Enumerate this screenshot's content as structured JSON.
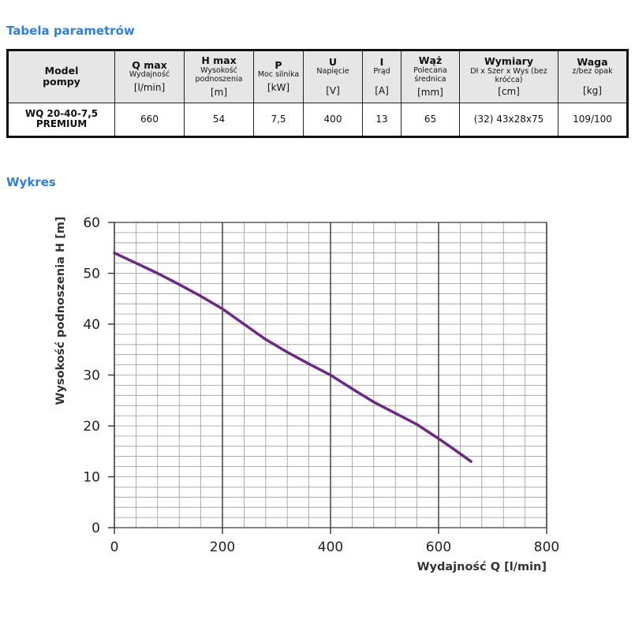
{
  "section_table_title": "Tabela parametrów",
  "section_chart_title": "Wykres",
  "table": {
    "headers": [
      {
        "main": "Model\npompy",
        "sub": "",
        "unit": ""
      },
      {
        "main": "Q max",
        "sub": "Wydajność",
        "unit": "[l/min]"
      },
      {
        "main": "H max",
        "sub": "Wysokość podnoszenia",
        "unit": "[m]"
      },
      {
        "main": "P",
        "sub": "Moc silnika",
        "unit": "[kW]"
      },
      {
        "main": "U",
        "sub": "Napięcie",
        "unit": "[V]"
      },
      {
        "main": "I",
        "sub": "Prąd",
        "unit": "[A]"
      },
      {
        "main": "Wąż",
        "sub": "Polecana średnica",
        "unit": "[mm]"
      },
      {
        "main": "Wymiary",
        "sub": "Dł x Szer x Wys (bez króćca)",
        "unit": "[cm]"
      },
      {
        "main": "Waga",
        "sub": "z/bez opak",
        "unit": "[kg]"
      }
    ],
    "row": [
      "WQ 20-40-7,5 PREMIUM",
      "660",
      "54",
      "7,5",
      "400",
      "13",
      "65",
      "(32) 43x28x75",
      "109/100"
    ]
  },
  "chart_data": {
    "type": "line",
    "xlabel": "Wydajność Q [l/min]",
    "ylabel": "Wysokość podnoszenia H [m]",
    "xlim": [
      0,
      800
    ],
    "ylim": [
      0,
      60
    ],
    "xticks": [
      "0",
      "200",
      "400",
      "600",
      "800"
    ],
    "yticks": [
      "0",
      "10",
      "20",
      "30",
      "40",
      "50",
      "60"
    ],
    "grid": true,
    "series": [
      {
        "name": "WQ 20-40-7,5 PREMIUM",
        "color": "#6a2a86",
        "x": [
          0,
          40,
          80,
          120,
          160,
          200,
          240,
          280,
          320,
          360,
          400,
          440,
          480,
          520,
          560,
          600,
          630,
          660
        ],
        "y": [
          54,
          52,
          50,
          47.8,
          45.5,
          43,
          40,
          37,
          34.5,
          32.2,
          30,
          27.3,
          24.7,
          22.5,
          20.3,
          17.5,
          15.3,
          13
        ]
      }
    ]
  },
  "colors": {
    "title_blue": "#2f7fe0",
    "header_bg": "#e6e6e6",
    "curve": "#6a2a86"
  }
}
